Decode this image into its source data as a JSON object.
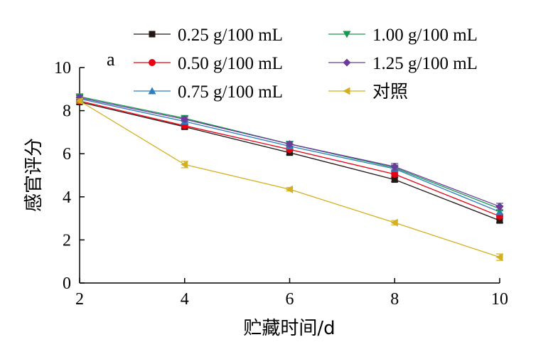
{
  "chart_data": {
    "type": "line",
    "panel_label": "a",
    "xlabel": "贮藏时间/d",
    "ylabel": "感官评分",
    "x": [
      2,
      4,
      6,
      8,
      10
    ],
    "xlim": [
      2,
      10
    ],
    "ylim": [
      0,
      10
    ],
    "x_ticks": [
      "2",
      "4",
      "6",
      "8",
      "10"
    ],
    "y_ticks": [
      "0",
      "2",
      "4",
      "6",
      "8",
      "10"
    ],
    "grid": false,
    "legend_position": "top",
    "series": [
      {
        "name": "0.25 g/100 mL",
        "values": [
          8.4,
          7.25,
          6.05,
          4.8,
          2.9
        ],
        "errors": [
          0.1,
          0.1,
          0.1,
          0.1,
          0.1
        ],
        "color": "#231815",
        "marker": "square"
      },
      {
        "name": "0.50 g/100 mL",
        "values": [
          8.45,
          7.3,
          6.2,
          5.05,
          3.1
        ],
        "errors": [
          0.1,
          0.1,
          0.1,
          0.1,
          0.1
        ],
        "color": "#e60012",
        "marker": "circle"
      },
      {
        "name": "0.75 g/100 mL",
        "values": [
          8.55,
          7.5,
          6.35,
          5.3,
          3.3
        ],
        "errors": [
          0.1,
          0.1,
          0.1,
          0.1,
          0.1
        ],
        "color": "#2e7ebd",
        "marker": "triangle-up"
      },
      {
        "name": "1.00 g/100 mL",
        "values": [
          8.65,
          7.65,
          6.45,
          5.35,
          3.45
        ],
        "errors": [
          0.1,
          0.1,
          0.1,
          0.1,
          0.1
        ],
        "color": "#1a9850",
        "marker": "triangle-down"
      },
      {
        "name": "1.25 g/100 mL",
        "values": [
          8.6,
          7.6,
          6.45,
          5.4,
          3.55
        ],
        "errors": [
          0.1,
          0.1,
          0.1,
          0.15,
          0.15
        ],
        "color": "#6a3d9a",
        "marker": "diamond"
      },
      {
        "name": "对照",
        "values": [
          8.45,
          5.5,
          4.35,
          2.8,
          1.2
        ],
        "errors": [
          0.1,
          0.15,
          0.08,
          0.1,
          0.15
        ],
        "color": "#d4b020",
        "marker": "triangle-left"
      }
    ]
  }
}
